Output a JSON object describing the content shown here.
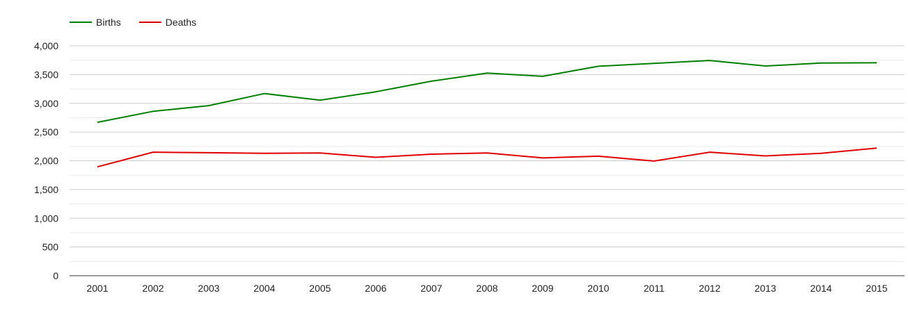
{
  "chart_data": {
    "type": "line",
    "title": "",
    "xlabel": "",
    "ylabel": "",
    "categories": [
      "2001",
      "2002",
      "2003",
      "2004",
      "2005",
      "2006",
      "2007",
      "2008",
      "2009",
      "2010",
      "2011",
      "2012",
      "2013",
      "2014",
      "2015"
    ],
    "ylim": [
      0,
      4000
    ],
    "y_ticks": [
      "0",
      "500",
      "1,000",
      "1,500",
      "2,000",
      "2,500",
      "3,000",
      "3,500",
      "4,000"
    ],
    "grid": true,
    "legend_position": "top-left",
    "series": [
      {
        "name": "Births",
        "color": "#008000",
        "values": [
          2670,
          2860,
          2960,
          3170,
          3055,
          3200,
          3385,
          3525,
          3470,
          3645,
          3695,
          3745,
          3650,
          3700,
          3705
        ]
      },
      {
        "name": "Deaths",
        "color": "#e00000",
        "values": [
          1895,
          2150,
          2140,
          2130,
          2135,
          2060,
          2115,
          2135,
          2050,
          2080,
          1995,
          2150,
          2085,
          2130,
          2220
        ]
      }
    ]
  }
}
